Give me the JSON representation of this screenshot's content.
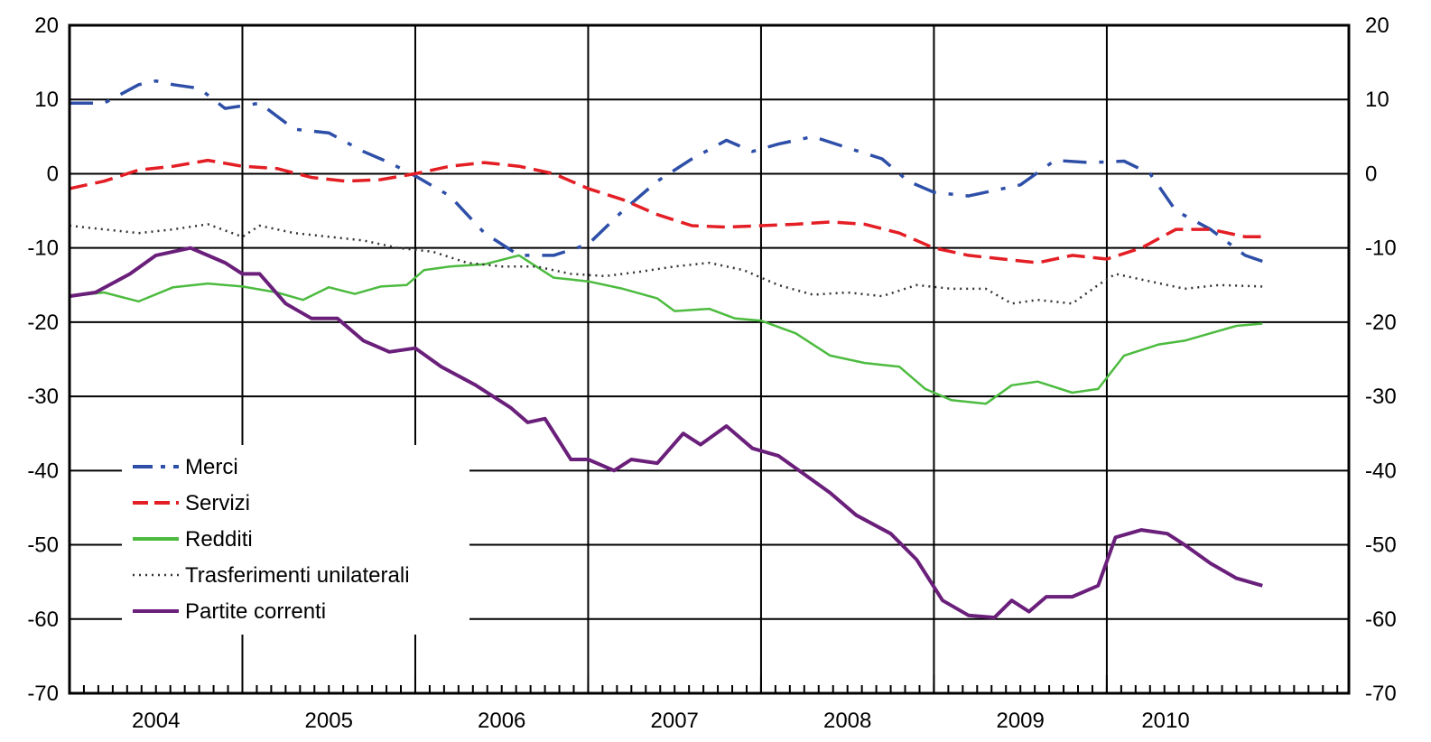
{
  "chart_data": {
    "type": "line",
    "title": "",
    "xlabel": "",
    "ylabel": "",
    "ylim": [
      -70,
      20
    ],
    "xlim": [
      2003.5,
      2010.9
    ],
    "y_ticks": [
      20,
      10,
      0,
      -10,
      -20,
      -30,
      -40,
      -50,
      -60,
      -70
    ],
    "y_tick_labels": [
      "20",
      "10",
      "0",
      "-10",
      "-20",
      "-30",
      "-40",
      "-50",
      "-60",
      "-70"
    ],
    "x_tick_labels": [
      "2004",
      "2005",
      "2006",
      "2007",
      "2008",
      "2009",
      "2010"
    ],
    "x_tick_positions": [
      2004,
      2005,
      2006,
      2007,
      2008,
      2009,
      2009.84
    ],
    "year_boundaries": [
      2004.5,
      2005.5,
      2006.5,
      2007.5,
      2008.5,
      2009.5
    ],
    "dual_y_axis": true,
    "grid": "horizontal and vertical gridlines",
    "legend_position": "lower-left inside plot",
    "series": [
      {
        "name": "Merci",
        "color": "#2e4fa8",
        "style": "dash-dot",
        "points": [
          [
            2003.5,
            9.5
          ],
          [
            2003.7,
            9.5
          ],
          [
            2003.9,
            12
          ],
          [
            2004.0,
            12.5
          ],
          [
            2004.1,
            12
          ],
          [
            2004.25,
            11.5
          ],
          [
            2004.4,
            8.8
          ],
          [
            2004.6,
            9.5
          ],
          [
            2004.8,
            6
          ],
          [
            2005.0,
            5.5
          ],
          [
            2005.2,
            3
          ],
          [
            2005.35,
            1.5
          ],
          [
            2005.5,
            -0.3
          ],
          [
            2005.7,
            -3
          ],
          [
            2005.9,
            -8
          ],
          [
            2006.1,
            -11
          ],
          [
            2006.3,
            -11
          ],
          [
            2006.5,
            -9.5
          ],
          [
            2006.7,
            -5
          ],
          [
            2006.9,
            -1
          ],
          [
            2007.1,
            2
          ],
          [
            2007.3,
            4.5
          ],
          [
            2007.45,
            3
          ],
          [
            2007.6,
            4
          ],
          [
            2007.8,
            5
          ],
          [
            2008.0,
            3.5
          ],
          [
            2008.2,
            2
          ],
          [
            2008.35,
            -1
          ],
          [
            2008.5,
            -2.5
          ],
          [
            2008.7,
            -3
          ],
          [
            2008.9,
            -2
          ],
          [
            2009.0,
            -1.5
          ],
          [
            2009.2,
            1.8
          ],
          [
            2009.4,
            1.5
          ],
          [
            2009.6,
            1.7
          ],
          [
            2009.75,
            0
          ],
          [
            2009.9,
            -5
          ],
          [
            2010.1,
            -7.5
          ],
          [
            2010.3,
            -11
          ],
          [
            2010.4,
            -11.8
          ]
        ]
      },
      {
        "name": "Servizi",
        "color": "#e31e24",
        "style": "dashed",
        "points": [
          [
            2003.5,
            -2
          ],
          [
            2003.7,
            -1
          ],
          [
            2003.9,
            0.5
          ],
          [
            2004.1,
            1
          ],
          [
            2004.3,
            1.8
          ],
          [
            2004.5,
            1
          ],
          [
            2004.7,
            0.7
          ],
          [
            2004.9,
            -0.5
          ],
          [
            2005.1,
            -1
          ],
          [
            2005.3,
            -0.8
          ],
          [
            2005.5,
            0
          ],
          [
            2005.7,
            1
          ],
          [
            2005.9,
            1.5
          ],
          [
            2006.1,
            1
          ],
          [
            2006.3,
            0
          ],
          [
            2006.5,
            -2
          ],
          [
            2006.7,
            -3.5
          ],
          [
            2006.9,
            -5.5
          ],
          [
            2007.1,
            -7
          ],
          [
            2007.3,
            -7.2
          ],
          [
            2007.5,
            -7
          ],
          [
            2007.7,
            -6.8
          ],
          [
            2007.9,
            -6.5
          ],
          [
            2008.1,
            -6.8
          ],
          [
            2008.3,
            -8
          ],
          [
            2008.5,
            -10
          ],
          [
            2008.7,
            -11
          ],
          [
            2008.9,
            -11.5
          ],
          [
            2009.1,
            -12
          ],
          [
            2009.3,
            -11
          ],
          [
            2009.5,
            -11.5
          ],
          [
            2009.7,
            -10
          ],
          [
            2009.9,
            -7.5
          ],
          [
            2010.1,
            -7.5
          ],
          [
            2010.3,
            -8.5
          ],
          [
            2010.4,
            -8.5
          ]
        ]
      },
      {
        "name": "Redditi",
        "color": "#4cbb3f",
        "style": "solid",
        "points": [
          [
            2003.5,
            -16.5
          ],
          [
            2003.7,
            -16
          ],
          [
            2003.9,
            -17.2
          ],
          [
            2004.1,
            -15.3
          ],
          [
            2004.3,
            -14.8
          ],
          [
            2004.5,
            -15.2
          ],
          [
            2004.7,
            -16
          ],
          [
            2004.85,
            -17
          ],
          [
            2005.0,
            -15.3
          ],
          [
            2005.15,
            -16.2
          ],
          [
            2005.3,
            -15.2
          ],
          [
            2005.45,
            -15
          ],
          [
            2005.55,
            -13
          ],
          [
            2005.7,
            -12.5
          ],
          [
            2005.9,
            -12.2
          ],
          [
            2006.1,
            -11
          ],
          [
            2006.3,
            -14
          ],
          [
            2006.5,
            -14.5
          ],
          [
            2006.7,
            -15.5
          ],
          [
            2006.9,
            -16.8
          ],
          [
            2007.0,
            -18.5
          ],
          [
            2007.2,
            -18.2
          ],
          [
            2007.35,
            -19.5
          ],
          [
            2007.5,
            -19.8
          ],
          [
            2007.7,
            -21.5
          ],
          [
            2007.9,
            -24.5
          ],
          [
            2008.1,
            -25.5
          ],
          [
            2008.3,
            -26
          ],
          [
            2008.45,
            -29
          ],
          [
            2008.6,
            -30.5
          ],
          [
            2008.8,
            -31
          ],
          [
            2008.95,
            -28.5
          ],
          [
            2009.1,
            -28
          ],
          [
            2009.3,
            -29.5
          ],
          [
            2009.45,
            -29
          ],
          [
            2009.6,
            -24.5
          ],
          [
            2009.8,
            -23
          ],
          [
            2009.95,
            -22.5
          ],
          [
            2010.1,
            -21.5
          ],
          [
            2010.25,
            -20.5
          ],
          [
            2010.4,
            -20.2
          ]
        ]
      },
      {
        "name": "Trasferimenti unilaterali",
        "color": "#333333",
        "style": "dotted",
        "points": [
          [
            2003.5,
            -7
          ],
          [
            2003.7,
            -7.5
          ],
          [
            2003.9,
            -8
          ],
          [
            2004.1,
            -7.5
          ],
          [
            2004.3,
            -6.8
          ],
          [
            2004.5,
            -8.5
          ],
          [
            2004.6,
            -7
          ],
          [
            2004.8,
            -8
          ],
          [
            2005.0,
            -8.5
          ],
          [
            2005.2,
            -9
          ],
          [
            2005.4,
            -10
          ],
          [
            2005.6,
            -10.5
          ],
          [
            2005.8,
            -12
          ],
          [
            2006.0,
            -12.5
          ],
          [
            2006.2,
            -12.5
          ],
          [
            2006.4,
            -13.5
          ],
          [
            2006.6,
            -13.8
          ],
          [
            2006.8,
            -13.2
          ],
          [
            2007.0,
            -12.5
          ],
          [
            2007.2,
            -12
          ],
          [
            2007.4,
            -13
          ],
          [
            2007.6,
            -15
          ],
          [
            2007.8,
            -16.3
          ],
          [
            2008.0,
            -16
          ],
          [
            2008.2,
            -16.5
          ],
          [
            2008.4,
            -15
          ],
          [
            2008.6,
            -15.5
          ],
          [
            2008.8,
            -15.5
          ],
          [
            2008.95,
            -17.5
          ],
          [
            2009.1,
            -17
          ],
          [
            2009.3,
            -17.5
          ],
          [
            2009.45,
            -15
          ],
          [
            2009.55,
            -13.5
          ],
          [
            2009.75,
            -14.5
          ],
          [
            2009.95,
            -15.5
          ],
          [
            2010.15,
            -15
          ],
          [
            2010.4,
            -15.2
          ]
        ]
      },
      {
        "name": "Partite correnti",
        "color": "#6a1f7a",
        "style": "solid",
        "points": [
          [
            2003.5,
            -16.5
          ],
          [
            2003.65,
            -16
          ],
          [
            2003.85,
            -13.5
          ],
          [
            2004.0,
            -11
          ],
          [
            2004.1,
            -10.5
          ],
          [
            2004.2,
            -10
          ],
          [
            2004.3,
            -11
          ],
          [
            2004.4,
            -12
          ],
          [
            2004.5,
            -13.5
          ],
          [
            2004.6,
            -13.5
          ],
          [
            2004.75,
            -17.5
          ],
          [
            2004.9,
            -19.5
          ],
          [
            2005.05,
            -19.5
          ],
          [
            2005.2,
            -22.5
          ],
          [
            2005.35,
            -24
          ],
          [
            2005.5,
            -23.5
          ],
          [
            2005.65,
            -26
          ],
          [
            2005.85,
            -28.5
          ],
          [
            2006.05,
            -31.5
          ],
          [
            2006.15,
            -33.5
          ],
          [
            2006.25,
            -33
          ],
          [
            2006.4,
            -38.5
          ],
          [
            2006.5,
            -38.5
          ],
          [
            2006.65,
            -40
          ],
          [
            2006.75,
            -38.5
          ],
          [
            2006.9,
            -39
          ],
          [
            2007.05,
            -35
          ],
          [
            2007.15,
            -36.5
          ],
          [
            2007.3,
            -34
          ],
          [
            2007.45,
            -37
          ],
          [
            2007.6,
            -38
          ],
          [
            2007.75,
            -40.5
          ],
          [
            2007.9,
            -43
          ],
          [
            2008.05,
            -46
          ],
          [
            2008.25,
            -48.5
          ],
          [
            2008.4,
            -52
          ],
          [
            2008.55,
            -57.5
          ],
          [
            2008.7,
            -59.5
          ],
          [
            2008.85,
            -59.8
          ],
          [
            2008.95,
            -57.5
          ],
          [
            2009.05,
            -59
          ],
          [
            2009.15,
            -57
          ],
          [
            2009.3,
            -57
          ],
          [
            2009.45,
            -55.5
          ],
          [
            2009.55,
            -49
          ],
          [
            2009.7,
            -48
          ],
          [
            2009.85,
            -48.5
          ],
          [
            2009.95,
            -50
          ],
          [
            2010.1,
            -52.5
          ],
          [
            2010.25,
            -54.5
          ],
          [
            2010.4,
            -55.5
          ]
        ]
      }
    ]
  }
}
